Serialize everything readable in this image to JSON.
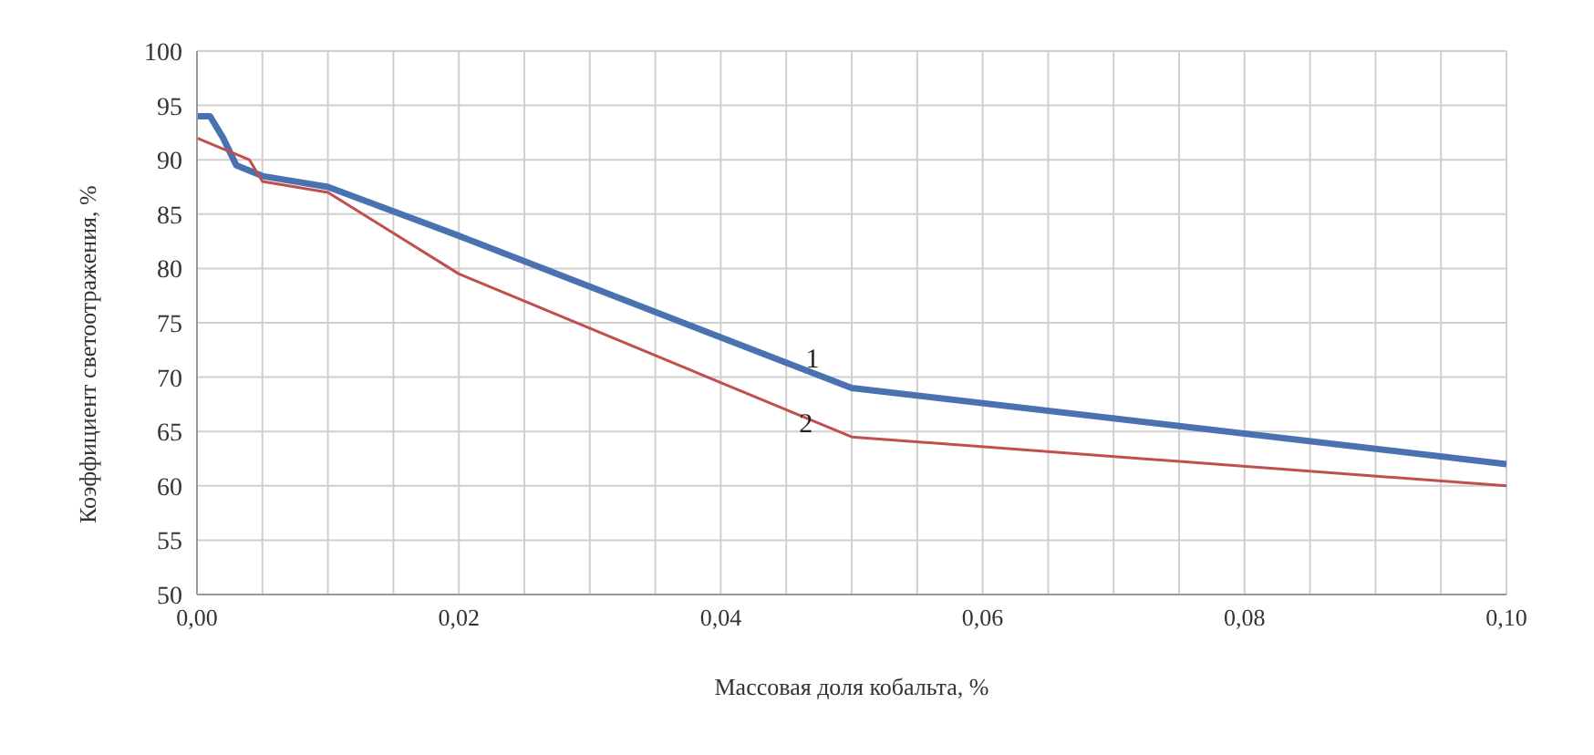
{
  "chart_data": {
    "type": "line",
    "xlabel": "Массовая доля кобальта, %",
    "ylabel": "Коэффициент светоотражения, %",
    "series": [
      {
        "color": "#4a72b0",
        "x": [
          0,
          0.001,
          0.002,
          0.003,
          0.005,
          0.01,
          0.02,
          0.05,
          0.1
        ],
        "values": [
          94,
          94,
          92,
          89.5,
          88.5,
          87.5,
          83,
          69,
          62
        ]
      },
      {
        "color": "#c0504d",
        "x": [
          0,
          0.002,
          0.004,
          0.005,
          0.01,
          0.02,
          0.05,
          0.1
        ],
        "values": [
          92,
          91,
          90,
          88,
          87,
          79.5,
          64.5,
          60
        ]
      }
    ],
    "xlim": [
      0,
      0.1
    ],
    "xticks": [
      {
        "value": 0,
        "label": "0,00"
      },
      {
        "value": 0.005,
        "label": null
      },
      {
        "value": 0.01,
        "label": null
      },
      {
        "value": 0.015,
        "label": null
      },
      {
        "value": 0.02,
        "label": "0,02"
      },
      {
        "value": 0.025,
        "label": null
      },
      {
        "value": 0.03,
        "label": null
      },
      {
        "value": 0.035,
        "label": null
      },
      {
        "value": 0.04,
        "label": "0,04"
      },
      {
        "value": 0.045,
        "label": null
      },
      {
        "value": 0.05,
        "label": null
      },
      {
        "value": 0.055,
        "label": null
      },
      {
        "value": 0.06,
        "label": "0,06"
      },
      {
        "value": 0.065,
        "label": null
      },
      {
        "value": 0.07,
        "label": null
      },
      {
        "value": 0.075,
        "label": null
      },
      {
        "value": 0.08,
        "label": "0,08"
      },
      {
        "value": 0.085,
        "label": null
      },
      {
        "value": 0.09,
        "label": null
      },
      {
        "value": 0.095,
        "label": null
      },
      {
        "value": 0.1,
        "label": "0,10"
      }
    ],
    "ylim": [
      50,
      100
    ],
    "yticks": [
      50,
      55,
      60,
      65,
      70,
      75,
      80,
      85,
      90,
      95,
      100
    ],
    "grid": true,
    "legend": false,
    "marker": "none",
    "line_style": "solid",
    "annotations": [
      {
        "text": "1",
        "x": 0.047,
        "y": 71.5
      },
      {
        "text": "2",
        "x": 0.0465,
        "y": 65.5
      }
    ]
  }
}
